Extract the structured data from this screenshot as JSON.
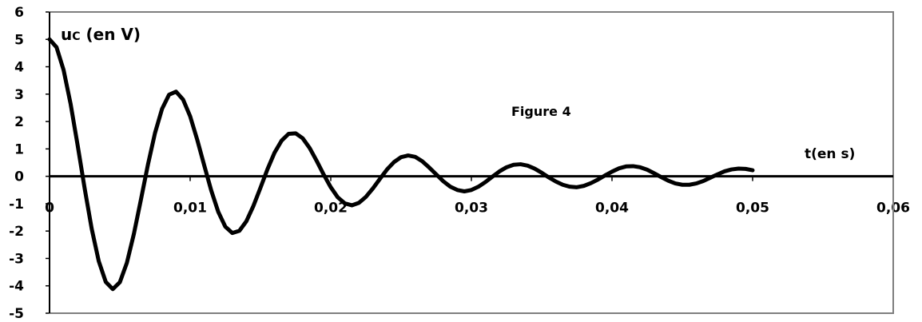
{
  "chart_data": {
    "type": "line",
    "title": "Figure 4",
    "ylabel": {
      "main": "u",
      "subscript": "C",
      "rest": " (en V)"
    },
    "xlabel": "t(en s)",
    "xlim": [
      0,
      0.06
    ],
    "ylim": [
      -5,
      6
    ],
    "x_ticks": [
      0,
      0.01,
      0.02,
      0.03,
      0.04,
      0.05,
      0.06
    ],
    "x_tick_labels": [
      "0",
      "0,01",
      "0,02",
      "0,03",
      "0,04",
      "0,05",
      "0,06"
    ],
    "y_ticks": [
      6,
      5,
      4,
      3,
      2,
      1,
      0,
      -1,
      -2,
      -3,
      -4,
      -5
    ],
    "y_tick_labels": [
      "6",
      "5",
      "4",
      "3",
      "2",
      "1",
      "0",
      "-1",
      "-2",
      "-3",
      "-4",
      "-5"
    ],
    "grid": false,
    "series": [
      {
        "x": [
          0,
          0.0005,
          0.001,
          0.0015,
          0.002,
          0.0025,
          0.003,
          0.0035,
          0.004,
          0.0045,
          0.005,
          0.0055,
          0.006,
          0.0065,
          0.007,
          0.0075,
          0.008,
          0.0085,
          0.009,
          0.0095,
          0.01,
          0.0105,
          0.011,
          0.0115,
          0.012,
          0.0125,
          0.013,
          0.0135,
          0.014,
          0.0145,
          0.015,
          0.0155,
          0.016,
          0.0165,
          0.017,
          0.0175,
          0.018,
          0.0185,
          0.019,
          0.0195,
          0.02,
          0.0205,
          0.021,
          0.0215,
          0.022,
          0.0225,
          0.023,
          0.0235,
          0.024,
          0.0245,
          0.025,
          0.0255,
          0.026,
          0.0265,
          0.027,
          0.0275,
          0.028,
          0.0285,
          0.029,
          0.0295,
          0.03,
          0.0305,
          0.031,
          0.0315,
          0.032,
          0.0325,
          0.033,
          0.0335,
          0.034,
          0.0345,
          0.035,
          0.0355,
          0.036,
          0.0365,
          0.037,
          0.0375,
          0.038,
          0.0385,
          0.039,
          0.0395,
          0.04,
          0.0405,
          0.041,
          0.0415,
          0.042,
          0.0425,
          0.043,
          0.0435,
          0.044,
          0.0445,
          0.045,
          0.0455,
          0.046,
          0.0465,
          0.047,
          0.0475,
          0.048,
          0.0485,
          0.049,
          0.0495,
          0.05
        ],
        "values": [
          5.0,
          4.71,
          3.88,
          2.64,
          1.13,
          -0.45,
          -1.92,
          -3.1,
          -3.86,
          -4.12,
          -3.87,
          -3.16,
          -2.1,
          -0.85,
          0.43,
          1.58,
          2.46,
          2.98,
          3.09,
          2.8,
          2.19,
          1.34,
          0.4,
          -0.52,
          -1.3,
          -1.84,
          -2.07,
          -1.99,
          -1.64,
          -1.08,
          -0.42,
          0.26,
          0.86,
          1.3,
          1.55,
          1.57,
          1.39,
          1.03,
          0.56,
          0.06,
          -0.4,
          -0.77,
          -0.99,
          -1.06,
          -0.97,
          -0.75,
          -0.44,
          -0.09,
          0.25,
          0.52,
          0.7,
          0.76,
          0.71,
          0.55,
          0.32,
          0.07,
          -0.18,
          -0.38,
          -0.5,
          -0.55,
          -0.5,
          -0.38,
          -0.21,
          -0.01,
          0.18,
          0.33,
          0.42,
          0.44,
          0.39,
          0.28,
          0.13,
          -0.04,
          -0.19,
          -0.31,
          -0.38,
          -0.4,
          -0.35,
          -0.25,
          -0.12,
          0.03,
          0.17,
          0.29,
          0.36,
          0.37,
          0.33,
          0.24,
          0.11,
          -0.03,
          -0.16,
          -0.26,
          -0.31,
          -0.31,
          -0.26,
          -0.17,
          -0.05,
          0.07,
          0.18,
          0.25,
          0.28,
          0.27,
          0.22
        ]
      }
    ]
  }
}
